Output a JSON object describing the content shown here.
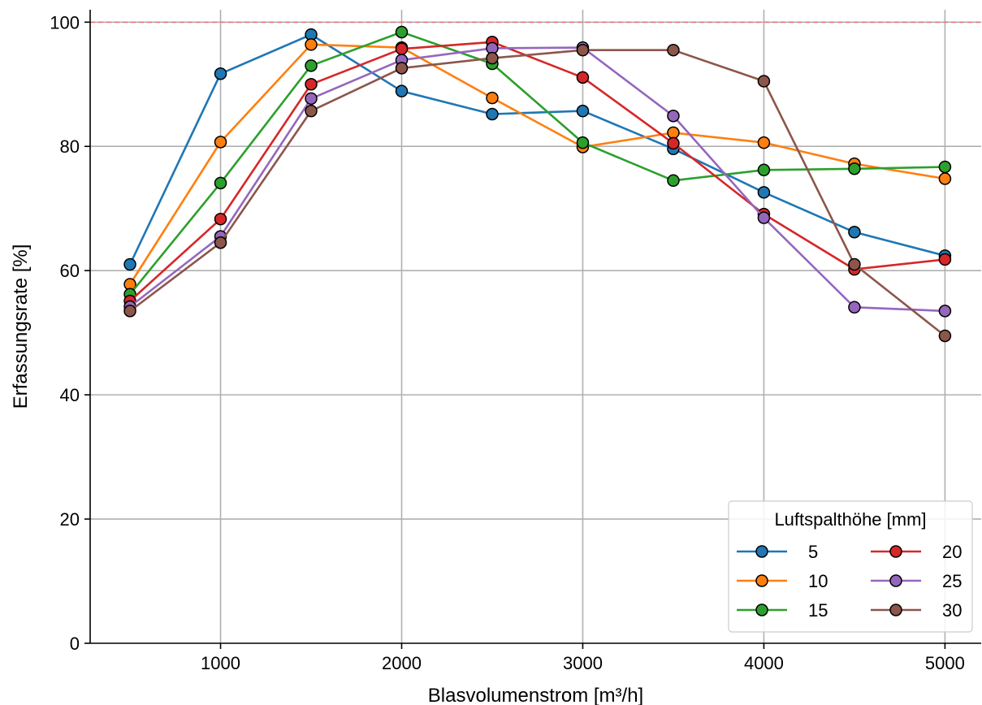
{
  "chart_data": {
    "type": "line",
    "xlabel": "Blasvolumenstrom [m³/h]",
    "ylabel": "Erfassungsrate [%]",
    "xlim": [
      280,
      5200
    ],
    "ylim": [
      0,
      102
    ],
    "xticks": [
      1000,
      2000,
      3000,
      4000,
      5000
    ],
    "yticks": [
      0,
      20,
      40,
      60,
      80,
      100
    ],
    "grid": true,
    "reference_line": {
      "y": 100,
      "style": "dashed",
      "color": "#e8737a"
    },
    "legend": {
      "title": "Luftspalthöhe [mm]",
      "placement": "bottom-right",
      "columns": 2
    },
    "x": [
      500,
      1000,
      1500,
      2000,
      2500,
      3000,
      3500,
      4000,
      4500,
      5000
    ],
    "series": [
      {
        "name": "5",
        "color": "#1f77b4",
        "values": [
          61.0,
          91.7,
          98.0,
          88.9,
          85.2,
          85.7,
          79.6,
          72.6,
          66.2,
          62.4
        ]
      },
      {
        "name": "10",
        "color": "#ff7f0e",
        "values": [
          57.8,
          80.7,
          96.4,
          95.9,
          87.8,
          79.9,
          82.2,
          80.6,
          77.2,
          74.8
        ]
      },
      {
        "name": "15",
        "color": "#2ca02c",
        "values": [
          56.2,
          74.1,
          93.0,
          98.4,
          93.3,
          80.6,
          74.5,
          76.2,
          76.4,
          76.7
        ]
      },
      {
        "name": "20",
        "color": "#d62728",
        "values": [
          55.1,
          68.3,
          90.0,
          95.7,
          96.8,
          91.1,
          80.5,
          69.1,
          60.2,
          61.8
        ]
      },
      {
        "name": "25",
        "color": "#9467bd",
        "values": [
          54.2,
          65.5,
          87.7,
          93.9,
          95.8,
          95.9,
          84.9,
          68.5,
          54.1,
          53.5
        ]
      },
      {
        "name": "30",
        "color": "#8c564b",
        "values": [
          53.5,
          64.5,
          85.7,
          92.6,
          94.2,
          95.5,
          95.5,
          90.5,
          61.0,
          49.5
        ]
      }
    ]
  }
}
